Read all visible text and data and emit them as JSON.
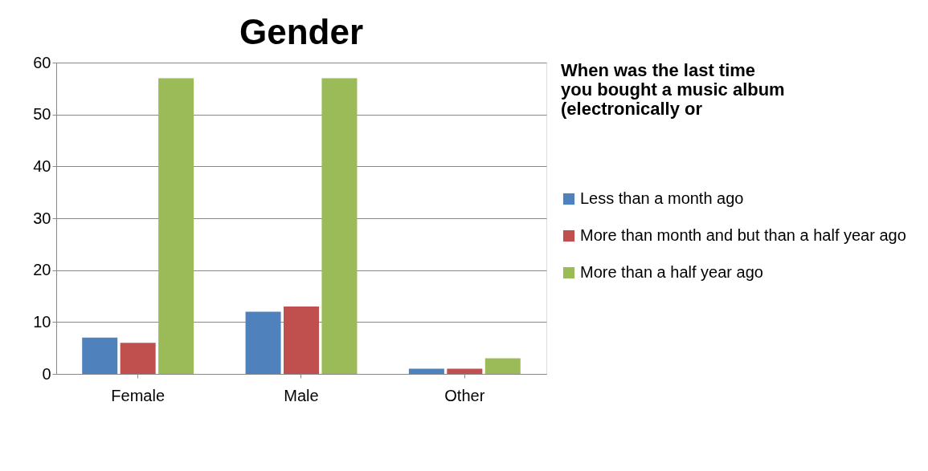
{
  "chart_data": {
    "type": "bar",
    "title": "Gender",
    "legend_title": "When was the last time you bought a music album (electronically or",
    "categories": [
      "Female",
      "Male",
      "Other"
    ],
    "series": [
      {
        "name": "Less than a month ago",
        "color": "#4f81bd",
        "values": [
          7,
          12,
          1
        ]
      },
      {
        "name": "More than month and but than a half year ago",
        "color": "#c0504d",
        "values": [
          6,
          13,
          1
        ]
      },
      {
        "name": "More than a half year ago",
        "color": "#9bbb59",
        "values": [
          57,
          57,
          3
        ]
      }
    ],
    "ylim": [
      0,
      60
    ],
    "yticks": [
      0,
      10,
      20,
      30,
      40,
      50,
      60
    ],
    "grid": "y",
    "legend": "right"
  }
}
